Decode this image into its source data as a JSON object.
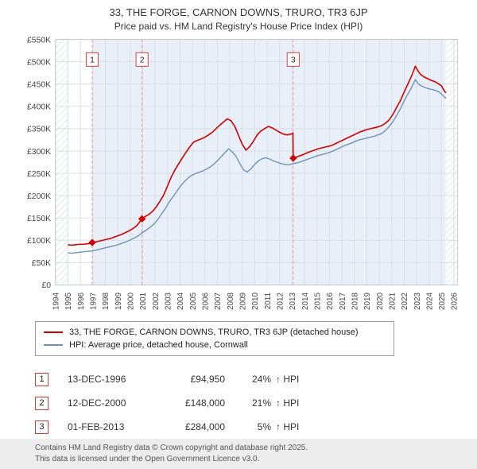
{
  "chart_data": {
    "type": "line",
    "title": "33, THE FORGE, CARNON DOWNS, TRURO, TR3 6JP",
    "subtitle": "Price paid vs. HM Land Registry's House Price Index (HPI)",
    "xlabel": "",
    "ylabel": "",
    "ylim_k": [
      0,
      550
    ],
    "y_tick_step_k": 50,
    "y_tick_labels": [
      "£0",
      "£50K",
      "£100K",
      "£150K",
      "£200K",
      "£250K",
      "£300K",
      "£350K",
      "£400K",
      "£450K",
      "£500K",
      "£550K"
    ],
    "x_tick_years": [
      1994,
      1995,
      1996,
      1997,
      1998,
      1999,
      2000,
      2001,
      2002,
      2003,
      2004,
      2005,
      2006,
      2007,
      2008,
      2009,
      2010,
      2011,
      2012,
      2013,
      2014,
      2015,
      2016,
      2017,
      2018,
      2019,
      2020,
      2021,
      2022,
      2023,
      2024,
      2025,
      2026
    ],
    "x_axis_range": [
      1994,
      2026.3
    ],
    "data_start": 1995.0,
    "data_end": 2025.35,
    "grid": true,
    "legend_position": "bottom",
    "colors": {
      "property": "#cc0000",
      "hpi": "#6e94b7",
      "sale_line": "#e89a9a",
      "band": "#e9eff8",
      "grid": "#d9dde4",
      "frame": "#c3c8d0",
      "hatch": "#c9cfd7"
    },
    "series": [
      {
        "name": "33, THE FORGE, CARNON DOWNS, TRURO, TR3 6JP (detached house)",
        "color": "#cc0000",
        "width": 1.7,
        "points_year_priceK": [
          [
            1995.0,
            90
          ],
          [
            1995.3,
            89
          ],
          [
            1995.6,
            90
          ],
          [
            1995.9,
            91
          ],
          [
            1996.2,
            91
          ],
          [
            1996.5,
            92
          ],
          [
            1996.8,
            93
          ],
          [
            1996.95,
            94.95
          ],
          [
            1997.2,
            96
          ],
          [
            1997.5,
            98
          ],
          [
            1997.8,
            100
          ],
          [
            1998.1,
            102
          ],
          [
            1998.4,
            104
          ],
          [
            1998.7,
            107
          ],
          [
            1999.0,
            110
          ],
          [
            1999.3,
            113
          ],
          [
            1999.6,
            117
          ],
          [
            1999.9,
            121
          ],
          [
            2000.2,
            126
          ],
          [
            2000.5,
            132
          ],
          [
            2000.95,
            148
          ],
          [
            2001.2,
            153
          ],
          [
            2001.5,
            158
          ],
          [
            2001.8,
            165
          ],
          [
            2002.1,
            175
          ],
          [
            2002.4,
            188
          ],
          [
            2002.7,
            202
          ],
          [
            2003.0,
            222
          ],
          [
            2003.3,
            242
          ],
          [
            2003.6,
            258
          ],
          [
            2003.9,
            272
          ],
          [
            2004.2,
            285
          ],
          [
            2004.5,
            298
          ],
          [
            2004.8,
            310
          ],
          [
            2005.1,
            320
          ],
          [
            2005.4,
            324
          ],
          [
            2005.7,
            327
          ],
          [
            2006.0,
            331
          ],
          [
            2006.3,
            336
          ],
          [
            2006.6,
            342
          ],
          [
            2006.9,
            350
          ],
          [
            2007.2,
            358
          ],
          [
            2007.5,
            365
          ],
          [
            2007.8,
            372
          ],
          [
            2008.1,
            368
          ],
          [
            2008.4,
            355
          ],
          [
            2008.7,
            335
          ],
          [
            2009.0,
            315
          ],
          [
            2009.3,
            302
          ],
          [
            2009.6,
            310
          ],
          [
            2009.9,
            322
          ],
          [
            2010.2,
            336
          ],
          [
            2010.5,
            345
          ],
          [
            2010.8,
            350
          ],
          [
            2011.1,
            355
          ],
          [
            2011.4,
            352
          ],
          [
            2011.7,
            347
          ],
          [
            2012.0,
            342
          ],
          [
            2012.3,
            338
          ],
          [
            2012.6,
            336
          ],
          [
            2012.9,
            338
          ],
          [
            2013.07,
            340
          ],
          [
            2013.09,
            284
          ],
          [
            2013.3,
            286
          ],
          [
            2013.6,
            289
          ],
          [
            2013.9,
            292
          ],
          [
            2014.2,
            296
          ],
          [
            2014.5,
            299
          ],
          [
            2014.8,
            302
          ],
          [
            2015.1,
            305
          ],
          [
            2015.4,
            307
          ],
          [
            2015.7,
            309
          ],
          [
            2016.0,
            311
          ],
          [
            2016.3,
            314
          ],
          [
            2016.6,
            318
          ],
          [
            2016.9,
            322
          ],
          [
            2017.2,
            326
          ],
          [
            2017.5,
            330
          ],
          [
            2017.8,
            334
          ],
          [
            2018.1,
            338
          ],
          [
            2018.4,
            342
          ],
          [
            2018.7,
            345
          ],
          [
            2019.0,
            348
          ],
          [
            2019.3,
            350
          ],
          [
            2019.6,
            352
          ],
          [
            2019.9,
            354
          ],
          [
            2020.2,
            357
          ],
          [
            2020.5,
            362
          ],
          [
            2020.8,
            370
          ],
          [
            2021.1,
            382
          ],
          [
            2021.4,
            398
          ],
          [
            2021.7,
            413
          ],
          [
            2022.0,
            432
          ],
          [
            2022.3,
            450
          ],
          [
            2022.6,
            468
          ],
          [
            2022.9,
            490
          ],
          [
            2023.1,
            480
          ],
          [
            2023.3,
            472
          ],
          [
            2023.6,
            466
          ],
          [
            2023.9,
            462
          ],
          [
            2024.2,
            458
          ],
          [
            2024.5,
            455
          ],
          [
            2024.8,
            450
          ],
          [
            2025.0,
            446
          ],
          [
            2025.2,
            436
          ],
          [
            2025.35,
            430
          ]
        ]
      },
      {
        "name": "HPI: Average price, detached house, Cornwall",
        "color": "#6e94b7",
        "width": 1.5,
        "points_year_priceK": [
          [
            1995.0,
            72
          ],
          [
            1995.3,
            71
          ],
          [
            1995.6,
            72
          ],
          [
            1995.9,
            73
          ],
          [
            1996.2,
            74
          ],
          [
            1996.5,
            75
          ],
          [
            1996.8,
            76
          ],
          [
            1997.1,
            77
          ],
          [
            1997.4,
            79
          ],
          [
            1997.7,
            81
          ],
          [
            1998.0,
            83
          ],
          [
            1998.3,
            85
          ],
          [
            1998.6,
            87
          ],
          [
            1998.9,
            89
          ],
          [
            1999.2,
            92
          ],
          [
            1999.5,
            95
          ],
          [
            1999.8,
            98
          ],
          [
            2000.1,
            102
          ],
          [
            2000.4,
            106
          ],
          [
            2000.7,
            111
          ],
          [
            2001.0,
            118
          ],
          [
            2001.3,
            123
          ],
          [
            2001.6,
            129
          ],
          [
            2001.9,
            136
          ],
          [
            2002.2,
            146
          ],
          [
            2002.5,
            158
          ],
          [
            2002.8,
            170
          ],
          [
            2003.1,
            184
          ],
          [
            2003.4,
            196
          ],
          [
            2003.7,
            208
          ],
          [
            2004.0,
            220
          ],
          [
            2004.3,
            230
          ],
          [
            2004.6,
            238
          ],
          [
            2004.9,
            245
          ],
          [
            2005.2,
            249
          ],
          [
            2005.5,
            252
          ],
          [
            2005.8,
            255
          ],
          [
            2006.1,
            259
          ],
          [
            2006.4,
            264
          ],
          [
            2006.7,
            270
          ],
          [
            2007.0,
            278
          ],
          [
            2007.3,
            287
          ],
          [
            2007.6,
            296
          ],
          [
            2007.9,
            305
          ],
          [
            2008.2,
            298
          ],
          [
            2008.5,
            288
          ],
          [
            2008.8,
            272
          ],
          [
            2009.1,
            258
          ],
          [
            2009.4,
            253
          ],
          [
            2009.7,
            260
          ],
          [
            2010.0,
            270
          ],
          [
            2010.3,
            278
          ],
          [
            2010.6,
            283
          ],
          [
            2010.9,
            285
          ],
          [
            2011.2,
            282
          ],
          [
            2011.5,
            278
          ],
          [
            2011.8,
            275
          ],
          [
            2012.1,
            272
          ],
          [
            2012.4,
            270
          ],
          [
            2012.7,
            269
          ],
          [
            2013.0,
            271
          ],
          [
            2013.3,
            273
          ],
          [
            2013.6,
            275
          ],
          [
            2013.9,
            278
          ],
          [
            2014.2,
            281
          ],
          [
            2014.5,
            284
          ],
          [
            2014.8,
            287
          ],
          [
            2015.1,
            290
          ],
          [
            2015.4,
            292
          ],
          [
            2015.7,
            294
          ],
          [
            2016.0,
            297
          ],
          [
            2016.3,
            300
          ],
          [
            2016.6,
            304
          ],
          [
            2016.9,
            308
          ],
          [
            2017.2,
            312
          ],
          [
            2017.5,
            315
          ],
          [
            2017.8,
            318
          ],
          [
            2018.1,
            322
          ],
          [
            2018.4,
            325
          ],
          [
            2018.7,
            327
          ],
          [
            2019.0,
            329
          ],
          [
            2019.3,
            331
          ],
          [
            2019.6,
            333
          ],
          [
            2019.9,
            336
          ],
          [
            2020.2,
            339
          ],
          [
            2020.5,
            346
          ],
          [
            2020.8,
            355
          ],
          [
            2021.1,
            366
          ],
          [
            2021.4,
            380
          ],
          [
            2021.7,
            395
          ],
          [
            2022.0,
            412
          ],
          [
            2022.3,
            428
          ],
          [
            2022.6,
            442
          ],
          [
            2022.9,
            460
          ],
          [
            2023.1,
            452
          ],
          [
            2023.3,
            447
          ],
          [
            2023.6,
            443
          ],
          [
            2023.9,
            440
          ],
          [
            2024.2,
            438
          ],
          [
            2024.5,
            436
          ],
          [
            2024.8,
            432
          ],
          [
            2025.0,
            428
          ],
          [
            2025.2,
            422
          ],
          [
            2025.35,
            418
          ]
        ]
      }
    ],
    "sales": [
      {
        "label": "1",
        "date": "13-DEC-1996",
        "price": "£94,950",
        "price_k": 94.95,
        "year_frac": 1996.95,
        "pct": "24%",
        "vs": "↑ HPI"
      },
      {
        "label": "2",
        "date": "12-DEC-2000",
        "price": "£148,000",
        "price_k": 148,
        "year_frac": 2000.95,
        "pct": "21%",
        "vs": "↑ HPI"
      },
      {
        "label": "3",
        "date": "01-FEB-2013",
        "price": "£284,000",
        "price_k": 284,
        "year_frac": 2013.09,
        "pct": "5%",
        "vs": "↑ HPI"
      }
    ]
  },
  "footer": {
    "line1": "Contains HM Land Registry data © Crown copyright and database right 2025.",
    "line2": "This data is licensed under the Open Government Licence v3.0."
  }
}
